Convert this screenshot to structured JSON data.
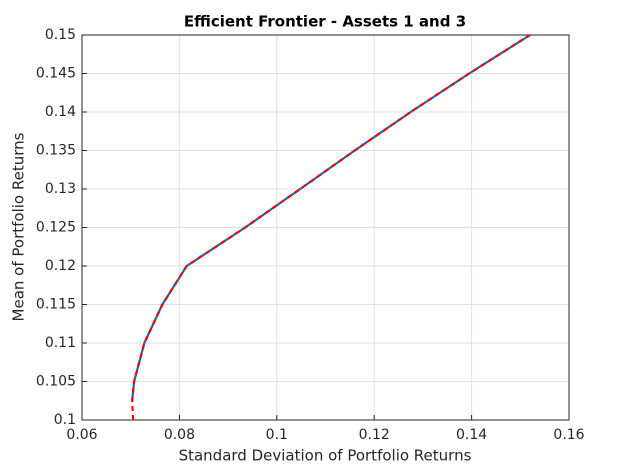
{
  "chart_data": {
    "type": "line",
    "title": "Efficient Frontier - Assets 1 and 3",
    "xlabel": "Standard Deviation of Portfolio Returns",
    "ylabel": "Mean of Portfolio Returns",
    "xlim": [
      0.06,
      0.16
    ],
    "xticks": [
      0.06,
      0.08,
      0.1,
      0.12,
      0.14,
      0.16
    ],
    "ylim": [
      0.1,
      0.15
    ],
    "yticks": [
      0.1,
      0.105,
      0.11,
      0.115,
      0.12,
      0.125,
      0.13,
      0.135,
      0.14,
      0.145,
      0.15
    ],
    "grid": true,
    "series": [
      {
        "color": "#0072BD",
        "dash": false,
        "x": [
          0.0703,
          0.0707,
          0.0728,
          0.0765,
          0.0815,
          0.0935,
          0.1048,
          0.116,
          0.1275,
          0.1395,
          0.152
        ],
        "values": [
          0.1025,
          0.105,
          0.11,
          0.115,
          0.12,
          0.125,
          0.13,
          0.135,
          0.14,
          0.145,
          0.15
        ]
      },
      {
        "color": "#FF0000",
        "dash": true,
        "x": [
          0.0705,
          0.0703,
          0.0707,
          0.0728,
          0.0765,
          0.0815,
          0.0935,
          0.1048,
          0.116,
          0.1275,
          0.1395,
          0.152
        ],
        "values": [
          0.1,
          0.1025,
          0.105,
          0.11,
          0.115,
          0.12,
          0.125,
          0.13,
          0.135,
          0.14,
          0.145,
          0.15
        ]
      }
    ]
  }
}
